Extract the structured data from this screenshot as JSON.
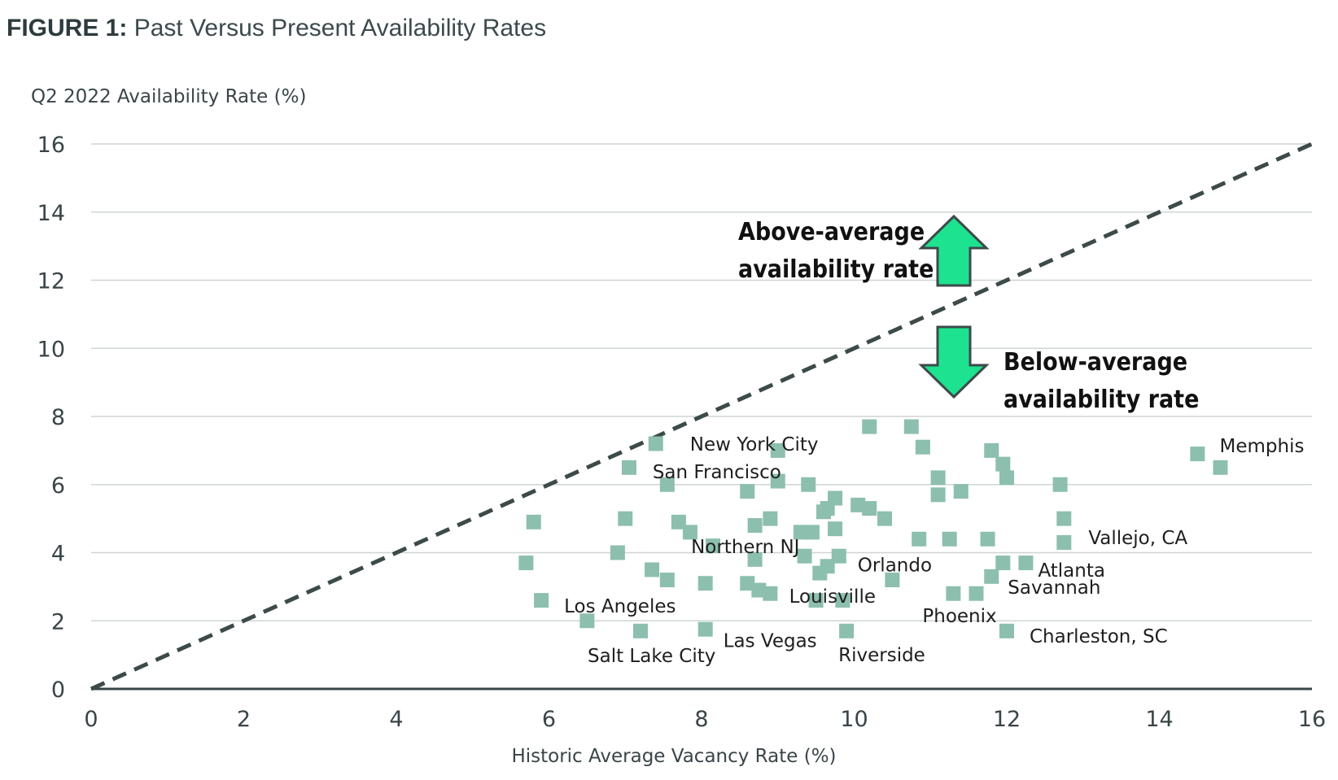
{
  "title": {
    "bold": "FIGURE 1:",
    "rest": "Past Versus Present Availability Rates"
  },
  "chart_data": {
    "type": "scatter",
    "title": "Past Versus Present Availability Rates",
    "xlabel": "Historic Average Vacancy Rate (%)",
    "ylabel": "Q2 2022 Availability Rate (%)",
    "xlim": [
      0,
      16
    ],
    "ylim": [
      0,
      16
    ],
    "xticks": [
      "0",
      "2",
      "4",
      "6",
      "8",
      "10",
      "12",
      "14",
      "16"
    ],
    "yticks": [
      "0",
      "2",
      "4",
      "6",
      "8",
      "10",
      "12",
      "14",
      "16"
    ],
    "grid": "horizontal",
    "reference_line": {
      "style": "dashed",
      "from": [
        0,
        0
      ],
      "to": [
        16,
        16
      ]
    },
    "marker_color": "#8cbfae",
    "points": [
      [
        5.7,
        3.7
      ],
      [
        5.8,
        4.9
      ],
      [
        5.9,
        2.6
      ],
      [
        6.5,
        2.0
      ],
      [
        6.9,
        4.0
      ],
      [
        7.0,
        5.0
      ],
      [
        7.05,
        6.5
      ],
      [
        7.2,
        1.7
      ],
      [
        7.35,
        3.5
      ],
      [
        7.4,
        7.2
      ],
      [
        7.55,
        6.0
      ],
      [
        7.55,
        3.2
      ],
      [
        7.7,
        4.9
      ],
      [
        7.85,
        4.6
      ],
      [
        8.05,
        3.1
      ],
      [
        8.05,
        1.75
      ],
      [
        8.15,
        4.2
      ],
      [
        8.6,
        5.8
      ],
      [
        8.6,
        3.1
      ],
      [
        8.7,
        3.8
      ],
      [
        8.7,
        4.8
      ],
      [
        8.75,
        2.9
      ],
      [
        8.9,
        5.0
      ],
      [
        8.9,
        2.8
      ],
      [
        9.0,
        6.1
      ],
      [
        9.0,
        7.0
      ],
      [
        9.3,
        4.6
      ],
      [
        9.35,
        3.9
      ],
      [
        9.4,
        6.0
      ],
      [
        9.45,
        4.6
      ],
      [
        9.5,
        2.6
      ],
      [
        9.55,
        3.4
      ],
      [
        9.6,
        5.2
      ],
      [
        9.65,
        3.6
      ],
      [
        9.65,
        5.3
      ],
      [
        9.75,
        5.6
      ],
      [
        9.75,
        4.7
      ],
      [
        9.8,
        3.9
      ],
      [
        9.85,
        2.6
      ],
      [
        9.9,
        1.7
      ],
      [
        10.05,
        5.4
      ],
      [
        10.2,
        5.3
      ],
      [
        10.2,
        7.7
      ],
      [
        10.4,
        5.0
      ],
      [
        10.5,
        3.2
      ],
      [
        10.75,
        7.7
      ],
      [
        10.85,
        4.4
      ],
      [
        10.9,
        7.1
      ],
      [
        11.1,
        6.2
      ],
      [
        11.1,
        5.7
      ],
      [
        11.25,
        4.4
      ],
      [
        11.3,
        2.8
      ],
      [
        11.4,
        5.8
      ],
      [
        11.6,
        2.8
      ],
      [
        11.75,
        4.4
      ],
      [
        11.8,
        3.3
      ],
      [
        11.8,
        7.0
      ],
      [
        11.95,
        3.7
      ],
      [
        11.95,
        6.6
      ],
      [
        12.0,
        6.2
      ],
      [
        12.0,
        1.7
      ],
      [
        12.25,
        3.7
      ],
      [
        12.7,
        6.0
      ],
      [
        12.75,
        5.0
      ],
      [
        12.75,
        4.3
      ],
      [
        14.5,
        6.9
      ],
      [
        14.8,
        6.5
      ]
    ],
    "annotations": [
      {
        "text": "New York City",
        "x": 9.0,
        "y": 7.0
      },
      {
        "text": "San Francisco",
        "x": 7.55,
        "y": 6.0
      },
      {
        "text": "Northern NJ",
        "x": 8.15,
        "y": 4.2
      },
      {
        "text": "Orlando",
        "x": 9.8,
        "y": 3.9
      },
      {
        "text": "Louisville",
        "x": 9.5,
        "y": 2.6
      },
      {
        "text": "Los Angeles",
        "x": 5.9,
        "y": 2.6
      },
      {
        "text": "Las Vegas",
        "x": 8.05,
        "y": 1.75
      },
      {
        "text": "Salt Lake City",
        "x": 7.2,
        "y": 1.7
      },
      {
        "text": "Riverside",
        "x": 9.9,
        "y": 1.7
      },
      {
        "text": "Phoenix",
        "x": 11.3,
        "y": 2.8
      },
      {
        "text": "Savannah",
        "x": 11.8,
        "y": 3.3
      },
      {
        "text": "Atlanta",
        "x": 12.25,
        "y": 3.7
      },
      {
        "text": "Vallejo, CA",
        "x": 12.75,
        "y": 4.3
      },
      {
        "text": "Charleston, SC",
        "x": 12.0,
        "y": 1.7
      },
      {
        "text": "Memphis",
        "x": 14.8,
        "y": 6.5
      }
    ],
    "callouts": {
      "above": [
        "Above-average",
        "availability rate"
      ],
      "below": [
        "Below-average",
        "availability rate"
      ],
      "arrow_color": "#1de28f"
    }
  }
}
